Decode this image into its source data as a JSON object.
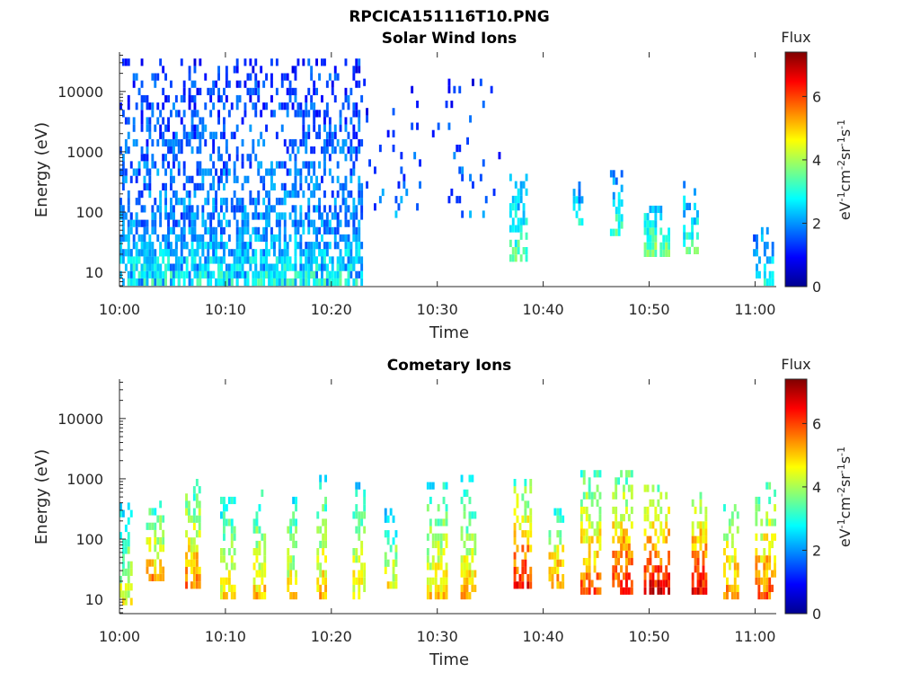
{
  "figure_title": "RPCICA151116T10.PNG",
  "colors": {
    "colormap": [
      "#00008f",
      "#0000ff",
      "#007fff",
      "#00ffff",
      "#7fff7f",
      "#ffff00",
      "#ff7f00",
      "#ff0000",
      "#7f0000"
    ],
    "axis": "#262626"
  },
  "colorbar": {
    "title": "Flux",
    "label": "eV-1cm-2sr-1s-1",
    "label_parts": {
      "b1": "eV",
      "s1": "-1",
      "b2": "cm",
      "s2": "-2",
      "b3": "sr",
      "s3": "-1",
      "b4": "s",
      "s4": "-1"
    },
    "range": [
      0,
      7.4
    ],
    "ticks": [
      0,
      2,
      4,
      6
    ],
    "tick_labels": [
      "0",
      "2",
      "4",
      "6"
    ]
  },
  "chart_data": [
    {
      "type": "heatmap",
      "title": "Solar Wind Ions",
      "xlabel": "Time",
      "ylabel": "Energy (eV)",
      "x_range_min": [
        0,
        62
      ],
      "y_range_eV": [
        5.8,
        45000
      ],
      "y_scale": "log",
      "x_tick_labels": [
        "10:00",
        "10:10",
        "10:20",
        "10:30",
        "10:40",
        "10:50",
        "11:00"
      ],
      "x_ticks_min": [
        0,
        10,
        20,
        30,
        40,
        50,
        60
      ],
      "y_tick_labels": [
        "10",
        "100",
        "1000",
        "10000"
      ],
      "y_ticks_eV": [
        10,
        100,
        1000,
        10000
      ],
      "bursts": [
        {
          "t": [
            0,
            23
          ],
          "e": [
            6,
            30000
          ],
          "level": 2.2,
          "density": 0.55,
          "note": "sparse scatter"
        },
        {
          "t": [
            0,
            23
          ],
          "e": [
            6,
            80
          ],
          "level": 3.0,
          "density": 0.55
        },
        {
          "t": [
            23,
            36
          ],
          "e": [
            80,
            15000
          ],
          "level": 1.8,
          "density": 0.08
        },
        {
          "t": [
            36.8,
            38.4
          ],
          "e": [
            15,
            400
          ],
          "level": 3.4,
          "density": 0.8
        },
        {
          "t": [
            42.8,
            43.8
          ],
          "e": [
            60,
            300
          ],
          "level": 2.8,
          "density": 0.6
        },
        {
          "t": [
            46.3,
            47.5
          ],
          "e": [
            40,
            400
          ],
          "level": 3.3,
          "density": 0.75
        },
        {
          "t": [
            49.5,
            52
          ],
          "e": [
            18,
            120
          ],
          "level": 3.8,
          "density": 0.7
        },
        {
          "t": [
            53.2,
            54.5
          ],
          "e": [
            20,
            300
          ],
          "level": 3.3,
          "density": 0.6
        },
        {
          "t": [
            59.8,
            61.8
          ],
          "e": [
            6,
            50
          ],
          "level": 3.0,
          "density": 0.5
        }
      ]
    },
    {
      "type": "heatmap",
      "title": "Cometary Ions",
      "xlabel": "Time",
      "ylabel": "Energy (eV)",
      "x_range_min": [
        0,
        62
      ],
      "y_range_eV": [
        5.8,
        45000
      ],
      "y_scale": "log",
      "x_tick_labels": [
        "10:00",
        "10:10",
        "10:20",
        "10:30",
        "10:40",
        "10:50",
        "11:00"
      ],
      "x_ticks_min": [
        0,
        10,
        20,
        30,
        40,
        50,
        60
      ],
      "y_tick_labels": [
        "10",
        "100",
        "1000",
        "10000"
      ],
      "y_ticks_eV": [
        10,
        100,
        1000,
        10000
      ],
      "bursts": [
        {
          "t": [
            0,
            1.2
          ],
          "e": [
            8,
            400
          ],
          "level": 4.5
        },
        {
          "t": [
            2.5,
            4.2
          ],
          "e": [
            20,
            400
          ],
          "level": 5.3
        },
        {
          "t": [
            6.2,
            7.5
          ],
          "e": [
            15,
            900
          ],
          "level": 5.5
        },
        {
          "t": [
            9.5,
            10.8
          ],
          "e": [
            10,
            500
          ],
          "level": 4.8
        },
        {
          "t": [
            12.6,
            13.8
          ],
          "e": [
            10,
            600
          ],
          "level": 5.0
        },
        {
          "t": [
            15.8,
            16.8
          ],
          "e": [
            10,
            500
          ],
          "level": 4.8
        },
        {
          "t": [
            18.6,
            19.6
          ],
          "e": [
            10,
            900
          ],
          "level": 5.0
        },
        {
          "t": [
            22.0,
            23.2
          ],
          "e": [
            10,
            700
          ],
          "level": 4.8
        },
        {
          "t": [
            25.0,
            26.2
          ],
          "e": [
            15,
            300
          ],
          "level": 4.5
        },
        {
          "t": [
            29.0,
            30.8
          ],
          "e": [
            10,
            800
          ],
          "level": 5.0
        },
        {
          "t": [
            32.2,
            33.5
          ],
          "e": [
            10,
            1000
          ],
          "level": 5.0
        },
        {
          "t": [
            37.2,
            38.8
          ],
          "e": [
            15,
            800
          ],
          "level": 6.3
        },
        {
          "t": [
            40.5,
            42
          ],
          "e": [
            15,
            300
          ],
          "level": 5.5
        },
        {
          "t": [
            43.5,
            45.5
          ],
          "e": [
            12,
            1200
          ],
          "level": 5.8
        },
        {
          "t": [
            46.5,
            48.5
          ],
          "e": [
            12,
            1200
          ],
          "level": 6.2
        },
        {
          "t": [
            49.5,
            51.8
          ],
          "e": [
            12,
            700
          ],
          "level": 6.6
        },
        {
          "t": [
            54.0,
            55.4
          ],
          "e": [
            12,
            600
          ],
          "level": 6.5
        },
        {
          "t": [
            57.0,
            58.5
          ],
          "e": [
            10,
            500
          ],
          "level": 5.5
        },
        {
          "t": [
            60.0,
            61.8
          ],
          "e": [
            10,
            800
          ],
          "level": 5.8
        }
      ]
    }
  ]
}
